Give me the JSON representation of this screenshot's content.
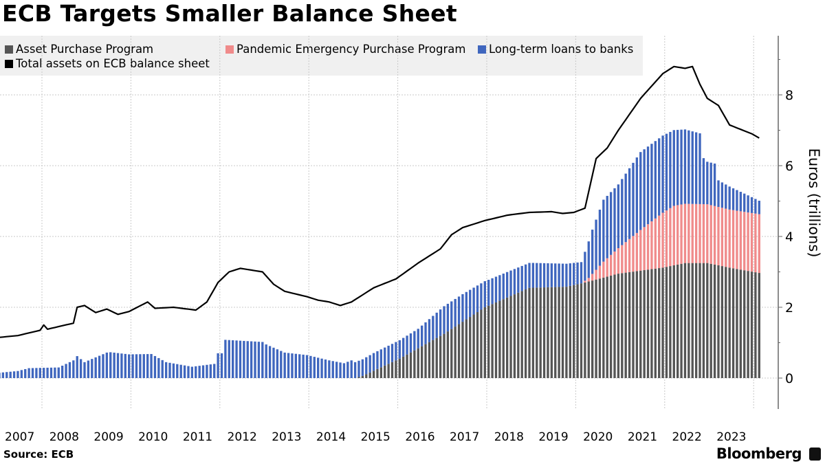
{
  "title": "ECB Targets Smaller Balance Sheet",
  "source": "Source: ECB",
  "brand": "Bloomberg",
  "legend": [
    {
      "label": "Asset Purchase Program",
      "color": "#555555"
    },
    {
      "label": "Pandemic Emergency Purchase Program",
      "color": "#f08b8b"
    },
    {
      "label": "Long-term loans to banks",
      "color": "#3f66be"
    },
    {
      "label": "Total assets on ECB balance sheet",
      "color": "#000000"
    }
  ],
  "chart_data": {
    "type": "bar",
    "title": "ECB Targets Smaller Balance Sheet",
    "xlabel": "",
    "ylabel": "Euros (trillions)",
    "ylim": [
      -0.8,
      9.7
    ],
    "yticks": [
      0,
      2,
      4,
      6,
      8
    ],
    "xticks": [
      "2007",
      "2008",
      "2009",
      "2010",
      "2011",
      "2012",
      "2013",
      "2014",
      "2015",
      "2016",
      "2017",
      "2018",
      "2019",
      "2020",
      "2021",
      "2022",
      "2023"
    ],
    "x_range": [
      "2007-01",
      "2024-02"
    ],
    "frequency": "monthly",
    "grid": true,
    "legend_position": "top-left",
    "stacking": "stacked bars + line",
    "series": [
      {
        "name": "Asset Purchase Program",
        "kind": "bar",
        "points": [
          [
            "2007-01",
            0
          ],
          [
            "2015-01",
            0
          ],
          [
            "2015-03",
            0.06
          ],
          [
            "2016-01",
            0.55
          ],
          [
            "2017-01",
            1.25
          ],
          [
            "2017-12",
            2.0
          ],
          [
            "2018-12",
            2.55
          ],
          [
            "2019-10",
            2.58
          ],
          [
            "2020-03",
            2.7
          ],
          [
            "2020-12",
            2.95
          ],
          [
            "2021-12",
            3.12
          ],
          [
            "2022-06",
            3.25
          ],
          [
            "2022-12",
            3.25
          ],
          [
            "2023-06",
            3.12
          ],
          [
            "2024-02",
            2.97
          ]
        ]
      },
      {
        "name": "Pandemic Emergency Purchase Program",
        "kind": "bar",
        "points": [
          [
            "2007-01",
            0
          ],
          [
            "2020-02",
            0
          ],
          [
            "2020-04",
            0.1
          ],
          [
            "2020-08",
            0.45
          ],
          [
            "2020-12",
            0.72
          ],
          [
            "2021-06",
            1.15
          ],
          [
            "2021-12",
            1.55
          ],
          [
            "2022-03",
            1.68
          ],
          [
            "2022-12",
            1.66
          ],
          [
            "2023-06",
            1.64
          ],
          [
            "2024-02",
            1.66
          ]
        ]
      },
      {
        "name": "Long-term loans to banks",
        "kind": "bar",
        "points": [
          [
            "2007-01",
            0.15
          ],
          [
            "2007-06",
            0.2
          ],
          [
            "2007-09",
            0.28
          ],
          [
            "2008-05",
            0.3
          ],
          [
            "2008-09",
            0.5
          ],
          [
            "2008-10",
            0.62
          ],
          [
            "2008-12",
            0.45
          ],
          [
            "2009-06",
            0.72
          ],
          [
            "2009-07",
            0.73
          ],
          [
            "2009-12",
            0.67
          ],
          [
            "2010-06",
            0.68
          ],
          [
            "2010-10",
            0.45
          ],
          [
            "2011-05",
            0.32
          ],
          [
            "2011-11",
            0.4
          ],
          [
            "2011-12",
            0.7
          ],
          [
            "2012-01",
            0.7
          ],
          [
            "2012-02",
            1.08
          ],
          [
            "2012-12",
            1.02
          ],
          [
            "2013-01",
            0.95
          ],
          [
            "2013-06",
            0.72
          ],
          [
            "2013-12",
            0.65
          ],
          [
            "2014-06",
            0.5
          ],
          [
            "2014-10",
            0.42
          ],
          [
            "2014-12",
            0.5
          ],
          [
            "2015-01",
            0.45
          ],
          [
            "2015-06",
            0.5
          ],
          [
            "2016-01",
            0.52
          ],
          [
            "2016-06",
            0.55
          ],
          [
            "2017-01",
            0.78
          ],
          [
            "2017-06",
            0.78
          ],
          [
            "2018-01",
            0.73
          ],
          [
            "2018-06",
            0.72
          ],
          [
            "2019-01",
            0.7
          ],
          [
            "2019-10",
            0.65
          ],
          [
            "2020-02",
            0.6
          ],
          [
            "2020-05",
            1.25
          ],
          [
            "2020-08",
            1.75
          ],
          [
            "2020-12",
            1.8
          ],
          [
            "2021-06",
            2.2
          ],
          [
            "2021-12",
            2.18
          ],
          [
            "2022-06",
            2.1
          ],
          [
            "2022-10",
            2.0
          ],
          [
            "2022-11",
            1.3
          ],
          [
            "2022-12",
            1.2
          ],
          [
            "2023-02",
            1.2
          ],
          [
            "2023-03",
            0.75
          ],
          [
            "2023-06",
            0.65
          ],
          [
            "2023-09",
            0.55
          ],
          [
            "2024-02",
            0.38
          ]
        ]
      },
      {
        "name": "Total assets on ECB balance sheet",
        "kind": "line",
        "points": [
          [
            "2007-01",
            1.15
          ],
          [
            "2007-06",
            1.2
          ],
          [
            "2007-12",
            1.35
          ],
          [
            "2008-01",
            1.5
          ],
          [
            "2008-02",
            1.38
          ],
          [
            "2008-06",
            1.48
          ],
          [
            "2008-09",
            1.55
          ],
          [
            "2008-10",
            2.0
          ],
          [
            "2008-12",
            2.05
          ],
          [
            "2009-03",
            1.85
          ],
          [
            "2009-06",
            1.95
          ],
          [
            "2009-09",
            1.8
          ],
          [
            "2009-12",
            1.88
          ],
          [
            "2010-05",
            2.15
          ],
          [
            "2010-07",
            1.97
          ],
          [
            "2010-12",
            2.0
          ],
          [
            "2011-06",
            1.92
          ],
          [
            "2011-09",
            2.15
          ],
          [
            "2011-12",
            2.7
          ],
          [
            "2012-03",
            3.0
          ],
          [
            "2012-06",
            3.1
          ],
          [
            "2012-12",
            3.0
          ],
          [
            "2013-03",
            2.65
          ],
          [
            "2013-06",
            2.45
          ],
          [
            "2013-12",
            2.3
          ],
          [
            "2014-03",
            2.2
          ],
          [
            "2014-06",
            2.15
          ],
          [
            "2014-09",
            2.05
          ],
          [
            "2014-12",
            2.15
          ],
          [
            "2015-06",
            2.55
          ],
          [
            "2015-12",
            2.8
          ],
          [
            "2016-06",
            3.25
          ],
          [
            "2016-12",
            3.65
          ],
          [
            "2017-03",
            4.05
          ],
          [
            "2017-06",
            4.25
          ],
          [
            "2017-12",
            4.45
          ],
          [
            "2018-06",
            4.6
          ],
          [
            "2018-12",
            4.68
          ],
          [
            "2019-06",
            4.7
          ],
          [
            "2019-09",
            4.65
          ],
          [
            "2019-12",
            4.68
          ],
          [
            "2020-03",
            4.8
          ],
          [
            "2020-06",
            6.2
          ],
          [
            "2020-09",
            6.5
          ],
          [
            "2020-12",
            7.0
          ],
          [
            "2021-06",
            7.9
          ],
          [
            "2021-12",
            8.6
          ],
          [
            "2022-03",
            8.8
          ],
          [
            "2022-06",
            8.75
          ],
          [
            "2022-08",
            8.8
          ],
          [
            "2022-10",
            8.3
          ],
          [
            "2022-12",
            7.9
          ],
          [
            "2023-03",
            7.7
          ],
          [
            "2023-06",
            7.15
          ],
          [
            "2023-12",
            6.9
          ],
          [
            "2024-02",
            6.78
          ]
        ]
      }
    ]
  }
}
